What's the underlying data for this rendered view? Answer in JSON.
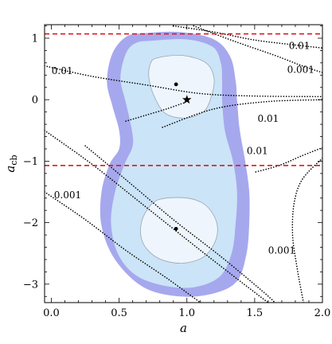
{
  "chart_data": {
    "type": "contour",
    "xlabel": "a",
    "ylabel_main": "a",
    "ylabel_sub": "cb",
    "xlim": [
      -0.05,
      2.0
    ],
    "ylim": [
      -3.3,
      1.22
    ],
    "x_ticks": [
      0.0,
      0.5,
      1.0,
      1.5,
      2.0
    ],
    "x_tick_labels": [
      "0.0",
      "0.5",
      "1.0",
      "1.5",
      "2.0"
    ],
    "y_ticks": [
      -3,
      -2,
      -1,
      0,
      1
    ],
    "y_tick_labels": [
      "−3",
      "−2",
      "−1",
      "0",
      "1"
    ],
    "frame_ticks": "both-sides",
    "colors": {
      "outer_region": "#a6a8ee",
      "middle_region": "#cbe4f7",
      "inner_region": "#eef5fd",
      "inner_contour": "#9aa6b4",
      "bound_lines": "#e0161b",
      "dotted_contours": "#000000"
    },
    "horizontal_bounds": [
      {
        "y": 1.07,
        "style": "red dashed"
      },
      {
        "y": -1.07,
        "style": "red dashed"
      }
    ],
    "points": [
      {
        "x": 0.92,
        "y": 0.25,
        "marker": "dot"
      },
      {
        "x": 0.92,
        "y": -2.1,
        "marker": "dot"
      },
      {
        "x": 1.0,
        "y": 0.0,
        "marker": "star"
      }
    ],
    "regions": [
      {
        "level": "outer",
        "boundary": [
          [
            0.68,
            1.08
          ],
          [
            0.95,
            1.1
          ],
          [
            1.2,
            0.98
          ],
          [
            1.32,
            0.7
          ],
          [
            1.36,
            0.3
          ],
          [
            1.37,
            0.0
          ],
          [
            1.39,
            -0.5
          ],
          [
            1.43,
            -1.0
          ],
          [
            1.46,
            -1.5
          ],
          [
            1.46,
            -2.0
          ],
          [
            1.44,
            -2.5
          ],
          [
            1.37,
            -2.95
          ],
          [
            1.2,
            -3.15
          ],
          [
            0.95,
            -3.2
          ],
          [
            0.68,
            -3.05
          ],
          [
            0.47,
            -2.6
          ],
          [
            0.37,
            -2.05
          ],
          [
            0.37,
            -1.5
          ],
          [
            0.43,
            -1.05
          ],
          [
            0.5,
            -0.8
          ],
          [
            0.5,
            -0.5
          ],
          [
            0.45,
            -0.1
          ],
          [
            0.41,
            0.3
          ],
          [
            0.45,
            0.75
          ],
          [
            0.55,
            1.02
          ]
        ]
      },
      {
        "level": "middle",
        "boundary": [
          [
            0.74,
            0.96
          ],
          [
            1.0,
            0.98
          ],
          [
            1.19,
            0.86
          ],
          [
            1.25,
            0.6
          ],
          [
            1.26,
            0.3
          ],
          [
            1.26,
            0.0
          ],
          [
            1.28,
            -0.5
          ],
          [
            1.34,
            -1.0
          ],
          [
            1.37,
            -1.5
          ],
          [
            1.36,
            -2.0
          ],
          [
            1.33,
            -2.5
          ],
          [
            1.24,
            -2.88
          ],
          [
            1.05,
            -3.05
          ],
          [
            0.82,
            -3.02
          ],
          [
            0.62,
            -2.85
          ],
          [
            0.49,
            -2.5
          ],
          [
            0.44,
            -2.0
          ],
          [
            0.47,
            -1.5
          ],
          [
            0.54,
            -1.05
          ],
          [
            0.6,
            -0.75
          ],
          [
            0.59,
            -0.45
          ],
          [
            0.55,
            -0.05
          ],
          [
            0.51,
            0.35
          ],
          [
            0.55,
            0.75
          ],
          [
            0.62,
            0.92
          ]
        ]
      },
      {
        "level": "inner",
        "boundary": [
          [
            0.78,
            0.68
          ],
          [
            0.97,
            0.72
          ],
          [
            1.14,
            0.6
          ],
          [
            1.2,
            0.35
          ],
          [
            1.18,
            0.05
          ],
          [
            1.12,
            -0.2
          ],
          [
            0.98,
            -0.3
          ],
          [
            0.84,
            -0.22
          ],
          [
            0.76,
            0.05
          ],
          [
            0.72,
            0.35
          ],
          [
            0.73,
            0.58
          ]
        ]
      },
      {
        "level": "inner",
        "boundary": [
          [
            0.8,
            -1.62
          ],
          [
            1.0,
            -1.6
          ],
          [
            1.14,
            -1.72
          ],
          [
            1.22,
            -2.0
          ],
          [
            1.21,
            -2.3
          ],
          [
            1.12,
            -2.56
          ],
          [
            0.96,
            -2.66
          ],
          [
            0.79,
            -2.58
          ],
          [
            0.68,
            -2.35
          ],
          [
            0.66,
            -2.05
          ],
          [
            0.71,
            -1.78
          ]
        ]
      }
    ],
    "dotted_contours": [
      {
        "label": "0.01",
        "points": [
          [
            0.9,
            1.2
          ],
          [
            1.2,
            1.1
          ],
          [
            1.5,
            0.97
          ],
          [
            1.8,
            0.89
          ],
          [
            2.0,
            0.84
          ]
        ]
      },
      {
        "label": "0.001",
        "points": [
          [
            1.05,
            1.2
          ],
          [
            1.35,
            0.95
          ],
          [
            1.65,
            0.72
          ],
          [
            1.85,
            0.55
          ],
          [
            2.0,
            0.44
          ]
        ]
      },
      {
        "label": "0.01",
        "points": [
          [
            -0.05,
            0.55
          ],
          [
            0.3,
            0.38
          ],
          [
            0.7,
            0.24
          ],
          [
            1.1,
            0.1
          ],
          [
            1.5,
            0.06
          ],
          [
            2.0,
            0.05
          ]
        ]
      },
      {
        "label": "0.01",
        "points": [
          [
            0.82,
            -0.45
          ],
          [
            1.2,
            -0.15
          ],
          [
            1.6,
            -0.03
          ],
          [
            2.0,
            0.0
          ]
        ]
      },
      {
        "points": [
          [
            0.55,
            -0.35
          ],
          [
            0.7,
            -0.25
          ],
          [
            0.85,
            -0.15
          ],
          [
            0.98,
            -0.05
          ]
        ]
      },
      {
        "label": "0.01",
        "points": [
          [
            2.0,
            -0.78
          ],
          [
            1.84,
            -0.92
          ],
          [
            1.68,
            -1.07
          ],
          [
            1.5,
            -1.18
          ]
        ]
      },
      {
        "points": [
          [
            -0.05,
            -0.5
          ],
          [
            0.3,
            -1.05
          ],
          [
            0.7,
            -1.75
          ],
          [
            1.1,
            -2.45
          ],
          [
            1.45,
            -3.05
          ],
          [
            1.6,
            -3.3
          ]
        ]
      },
      {
        "points": [
          [
            0.25,
            -0.75
          ],
          [
            0.55,
            -1.3
          ],
          [
            0.9,
            -1.95
          ],
          [
            1.25,
            -2.55
          ],
          [
            1.55,
            -3.1
          ],
          [
            1.65,
            -3.3
          ]
        ]
      },
      {
        "label": "0.001",
        "points": [
          [
            -0.05,
            -1.5
          ],
          [
            0.25,
            -1.95
          ],
          [
            0.55,
            -2.45
          ],
          [
            0.85,
            -2.9
          ],
          [
            1.1,
            -3.3
          ]
        ]
      },
      {
        "label": "0.001",
        "points": [
          [
            2.0,
            -0.95
          ],
          [
            1.85,
            -1.3
          ],
          [
            1.79,
            -1.7
          ],
          [
            1.78,
            -2.2
          ],
          [
            1.81,
            -2.7
          ],
          [
            1.86,
            -3.3
          ]
        ]
      }
    ],
    "contour_labels": [
      {
        "text": "0.01",
        "x": 1.83,
        "y": 0.88
      },
      {
        "text": "0.001",
        "x": 1.84,
        "y": 0.49
      },
      {
        "text": "0.01",
        "x": 0.08,
        "y": 0.47
      },
      {
        "text": "0.01",
        "x": 1.6,
        "y": -0.31
      },
      {
        "text": "0.01",
        "x": 1.52,
        "y": -0.83
      },
      {
        "text": "0.001",
        "x": 0.12,
        "y": -1.55
      },
      {
        "text": "0.001",
        "x": 1.7,
        "y": -2.45
      }
    ]
  }
}
